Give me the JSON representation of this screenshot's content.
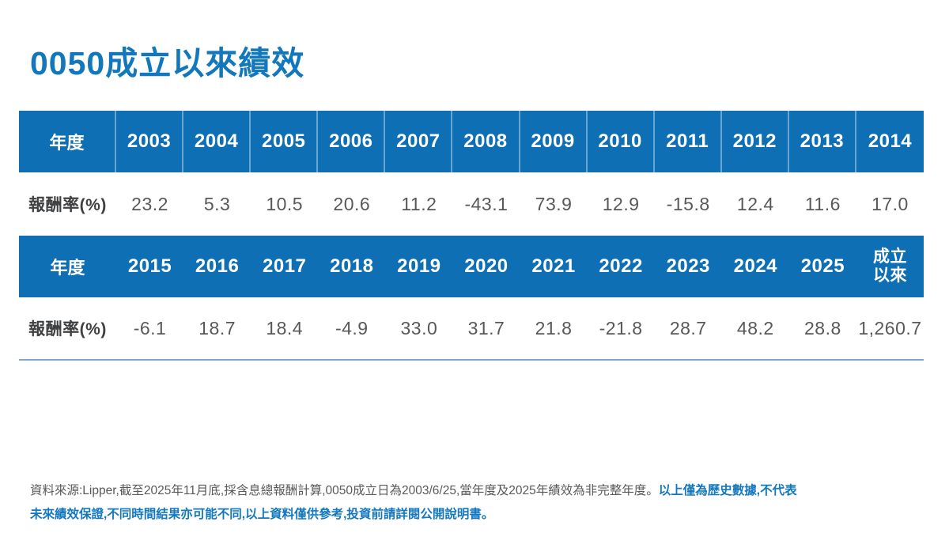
{
  "title": "0050成立以來績效",
  "colors": {
    "title_blue": "#1377BC",
    "header_bg": "#0E6FB5",
    "header_text": "#FFFFFF",
    "value_gray": "#58585A",
    "row_label_gray": "#3F4042",
    "footer_gray": "#58595B",
    "footer_blue": "#1478BE",
    "table_bottom_line": "#7FA8C9"
  },
  "table1": {
    "year_label": "年度",
    "row_label": "報酬率(%)",
    "years": [
      "2003",
      "2004",
      "2005",
      "2006",
      "2007",
      "2008",
      "2009",
      "2010",
      "2011",
      "2012",
      "2013",
      "2014"
    ],
    "returns": [
      "23.2",
      "5.3",
      "10.5",
      "20.6",
      "11.2",
      "-43.1",
      "73.9",
      "12.9",
      "-15.8",
      "12.4",
      "11.6",
      "17.0"
    ]
  },
  "table2": {
    "year_label": "年度",
    "row_label": "報酬率(%)",
    "years": [
      "2015",
      "2016",
      "2017",
      "2018",
      "2019",
      "2020",
      "2021",
      "2022",
      "2023",
      "2024",
      "2025",
      "成立以來"
    ],
    "returns": [
      "-6.1",
      "18.7",
      "18.4",
      "-4.9",
      "33.0",
      "31.7",
      "21.8",
      "-21.8",
      "28.7",
      "48.2",
      "28.8",
      "1,260.7"
    ]
  },
  "footer": {
    "source_text": "資料來源:Lipper,截至2025年11月底,採含息總報酬計算,0050成立日為2003/6/25,當年度及2025年績效為非完整年度。",
    "warning_line1": "以上僅為歷史數據,不代表",
    "warning_line2": "未來績效保證,不同時間結果亦可能不同,以上資料僅供參考,投資前請詳閱公開說明書。"
  },
  "chart_data": {
    "type": "table",
    "title": "0050成立以來績效",
    "columns": [
      "2003",
      "2004",
      "2005",
      "2006",
      "2007",
      "2008",
      "2009",
      "2010",
      "2011",
      "2012",
      "2013",
      "2014",
      "2015",
      "2016",
      "2017",
      "2018",
      "2019",
      "2020",
      "2021",
      "2022",
      "2023",
      "2024",
      "2025",
      "成立以來"
    ],
    "series": [
      {
        "name": "報酬率(%)",
        "values": [
          23.2,
          5.3,
          10.5,
          20.6,
          11.2,
          -43.1,
          73.9,
          12.9,
          -15.8,
          12.4,
          11.6,
          17.0,
          -6.1,
          18.7,
          18.4,
          -4.9,
          33.0,
          31.7,
          21.8,
          -21.8,
          28.7,
          48.2,
          28.8,
          1260.7
        ]
      }
    ]
  }
}
